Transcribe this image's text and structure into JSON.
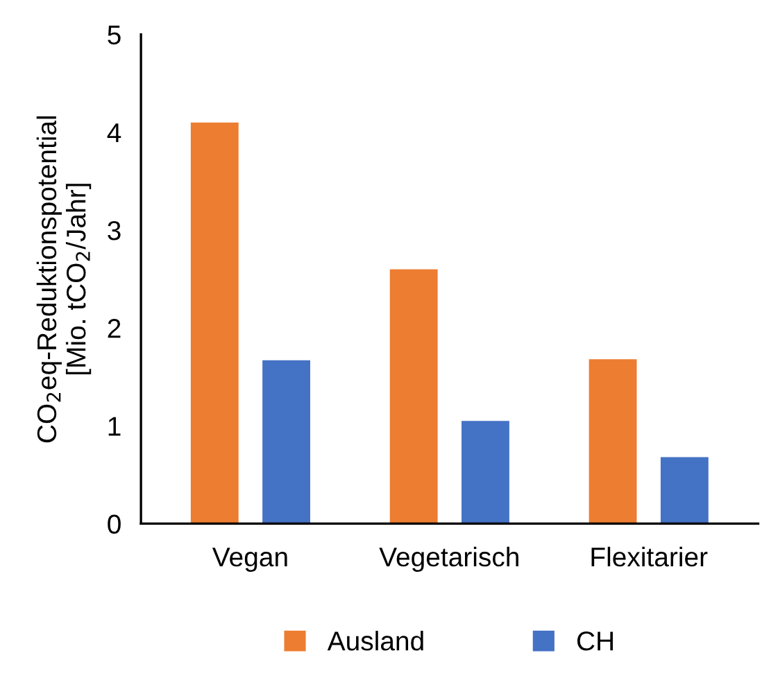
{
  "chart_data": {
    "type": "bar",
    "ylabel": "CO$_{2}$eq-Reduktionspotential\n[Mio. tCO$_{2}$/Jahr]",
    "categories": [
      "Vegan",
      "Vegetarisch",
      "Flexitarier"
    ],
    "series": [
      {
        "name": "Ausland",
        "color": "#ed7d31",
        "values": [
          4.1,
          2.6,
          1.68
        ]
      },
      {
        "name": "CH",
        "color": "#4472c4",
        "values": [
          1.67,
          1.05,
          0.68
        ]
      }
    ],
    "ylim": [
      0,
      5
    ],
    "yticks": [
      0,
      1,
      2,
      3,
      4,
      5
    ],
    "grid": false,
    "legend": "bottom"
  }
}
